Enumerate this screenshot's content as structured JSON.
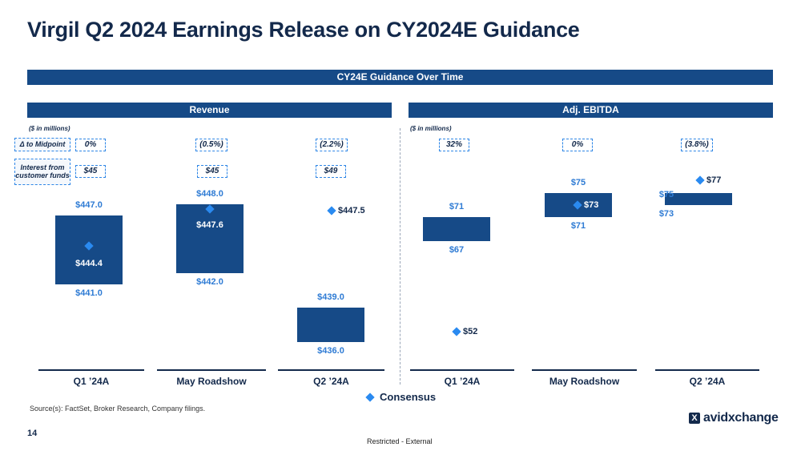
{
  "title": "Virgil Q2 2024 Earnings Release on CY2024E Guidance",
  "banner": "CY24E Guidance Over Time",
  "units_note": "($ in millions)",
  "row_labels": {
    "midpoint": "Δ to Midpoint",
    "interest": "Interest from customer funds"
  },
  "legend": {
    "consensus_label": "Consensus"
  },
  "colors": {
    "navy": "#13294b",
    "range_fill": "#164a87",
    "consensus": "#2a8af0",
    "label": "#2e7bd4"
  },
  "chart_data": [
    {
      "type": "range-bar",
      "title": "Revenue",
      "categories": [
        "Q1 ’24A",
        "May Roadshow",
        "Q2 ’24A"
      ],
      "delta_to_midpoint": [
        "0%",
        "(0.5%)",
        "(2.2%)"
      ],
      "interest_from_customer_funds": [
        "$45",
        "$45",
        "$49"
      ],
      "ranges": [
        {
          "low": 441.0,
          "high": 447.0,
          "low_label": "$441.0",
          "high_label": "$447.0"
        },
        {
          "low": 442.0,
          "high": 448.0,
          "low_label": "$442.0",
          "high_label": "$448.0"
        },
        {
          "low": 436.0,
          "high": 439.0,
          "low_label": "$436.0",
          "high_label": "$439.0"
        }
      ],
      "consensus": [
        {
          "value": 444.4,
          "label": "$444.4"
        },
        {
          "value": 447.6,
          "label": "$447.6"
        },
        {
          "value": 447.5,
          "label": "$447.5"
        }
      ]
    },
    {
      "type": "range-bar",
      "title": "Adj. EBITDA",
      "categories": [
        "Q1 ’24A",
        "May Roadshow",
        "Q2 ’24A"
      ],
      "delta_to_midpoint": [
        "32%",
        "0%",
        "(3.8%)"
      ],
      "ranges": [
        {
          "low": 67,
          "high": 71,
          "low_label": "$67",
          "high_label": "$71"
        },
        {
          "low": 71,
          "high": 75,
          "low_label": "$71",
          "high_label": "$75"
        },
        {
          "low": 73,
          "high": 75,
          "low_label": "$73",
          "high_label": "$75"
        }
      ],
      "consensus": [
        {
          "value": 52,
          "label": "$52"
        },
        {
          "value": 73,
          "label": "$73"
        },
        {
          "value": 77,
          "label": "$77"
        }
      ]
    }
  ],
  "source": "Source(s): FactSet, Broker Research, Company filings.",
  "page_number": "14",
  "classification": "Restricted - External",
  "logo_text": "avidxchange",
  "logo_mark": "X"
}
